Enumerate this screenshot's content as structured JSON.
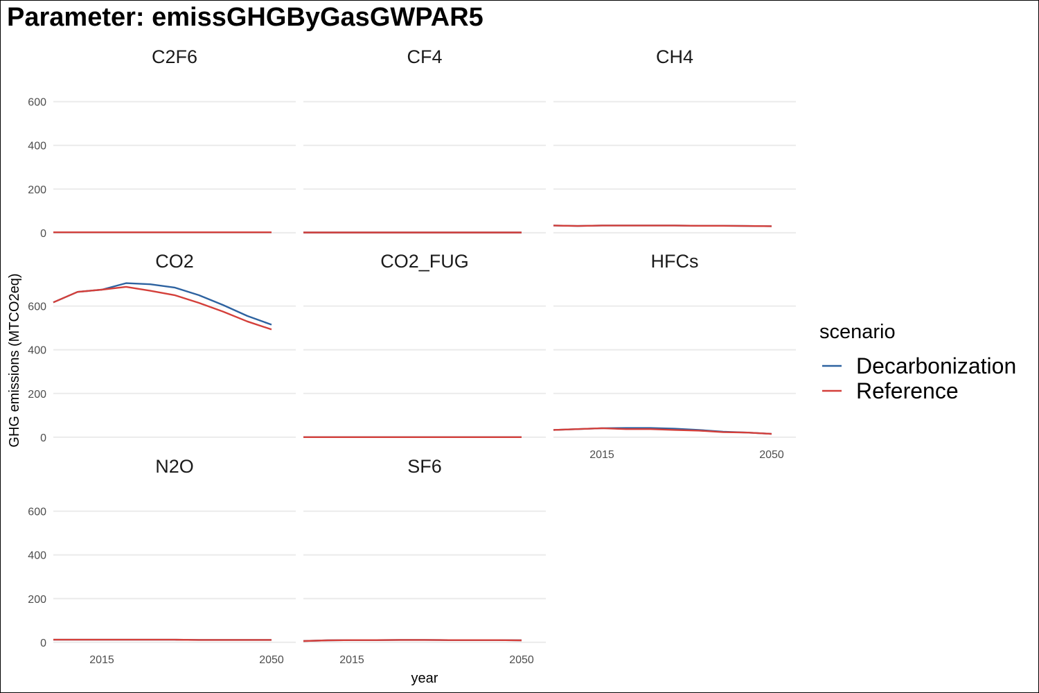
{
  "chart_data": {
    "type": "line",
    "title": "Parameter: emissGHGByGasGWPAR5",
    "xlabel": "year",
    "ylabel": "GHG emissions (MTCO2eq)",
    "x_ticks": [
      2015,
      2050
    ],
    "y_ticks": [
      0,
      200,
      400,
      600
    ],
    "xlim": [
      2005,
      2055
    ],
    "ylim": [
      -10,
      710
    ],
    "x": [
      2005,
      2010,
      2015,
      2020,
      2025,
      2030,
      2035,
      2040,
      2045,
      2050
    ],
    "legend": {
      "title": "scenario",
      "position": "right",
      "entries": [
        {
          "name": "Decarbonization",
          "color": "#2d62a0"
        },
        {
          "name": "Reference",
          "color": "#d43f3a"
        }
      ]
    },
    "grid": true,
    "facets": [
      {
        "name": "C2F6",
        "series": [
          {
            "name": "Decarbonization",
            "values": [
              2,
              2,
              2,
              2,
              2,
              2,
              2,
              2,
              2,
              2
            ]
          },
          {
            "name": "Reference",
            "values": [
              2,
              2,
              2,
              2,
              2,
              2,
              2,
              2,
              2,
              2
            ]
          }
        ]
      },
      {
        "name": "CF4",
        "series": [
          {
            "name": "Decarbonization",
            "values": [
              1,
              1,
              1,
              1,
              1,
              1,
              1,
              1,
              1,
              1
            ]
          },
          {
            "name": "Reference",
            "values": [
              1,
              1,
              1,
              1,
              1,
              1,
              1,
              1,
              1,
              1
            ]
          }
        ]
      },
      {
        "name": "CH4",
        "series": [
          {
            "name": "Decarbonization",
            "values": [
              33,
              31,
              33,
              33,
              33,
              33,
              32,
              32,
              31,
              30
            ]
          },
          {
            "name": "Reference",
            "values": [
              33,
              31,
              33,
              33,
              33,
              33,
              32,
              32,
              31,
              30
            ]
          }
        ]
      },
      {
        "name": "CO2",
        "series": [
          {
            "name": "Decarbonization",
            "values": [
              617,
              665,
              675,
              705,
              700,
              685,
              650,
              605,
              555,
              515
            ]
          },
          {
            "name": "Reference",
            "values": [
              617,
              665,
              675,
              688,
              670,
              650,
              615,
              575,
              530,
              493
            ]
          }
        ]
      },
      {
        "name": "CO2_FUG",
        "series": [
          {
            "name": "Decarbonization",
            "values": [
              0,
              0,
              0,
              0,
              0,
              0,
              0,
              0,
              0,
              0
            ]
          },
          {
            "name": "Reference",
            "values": [
              0,
              0,
              0,
              0,
              0,
              0,
              0,
              0,
              0,
              0
            ]
          }
        ]
      },
      {
        "name": "HFCs",
        "series": [
          {
            "name": "Decarbonization",
            "values": [
              33,
              37,
              41,
              42,
              42,
              39,
              33,
              25,
              21,
              15
            ]
          },
          {
            "name": "Reference",
            "values": [
              33,
              37,
              41,
              37,
              37,
              33,
              30,
              23,
              21,
              15
            ]
          }
        ]
      },
      {
        "name": "N2O",
        "series": [
          {
            "name": "Decarbonization",
            "values": [
              12,
              12,
              12,
              12,
              12,
              12,
              11,
              11,
              11,
              11
            ]
          },
          {
            "name": "Reference",
            "values": [
              12,
              12,
              12,
              12,
              12,
              12,
              11,
              11,
              11,
              11
            ]
          }
        ]
      },
      {
        "name": "SF6",
        "series": [
          {
            "name": "Decarbonization",
            "values": [
              6,
              9,
              10,
              10,
              11,
              11,
              10,
              10,
              10,
              9
            ]
          },
          {
            "name": "Reference",
            "values": [
              6,
              9,
              10,
              10,
              11,
              11,
              10,
              10,
              10,
              9
            ]
          }
        ]
      }
    ]
  }
}
